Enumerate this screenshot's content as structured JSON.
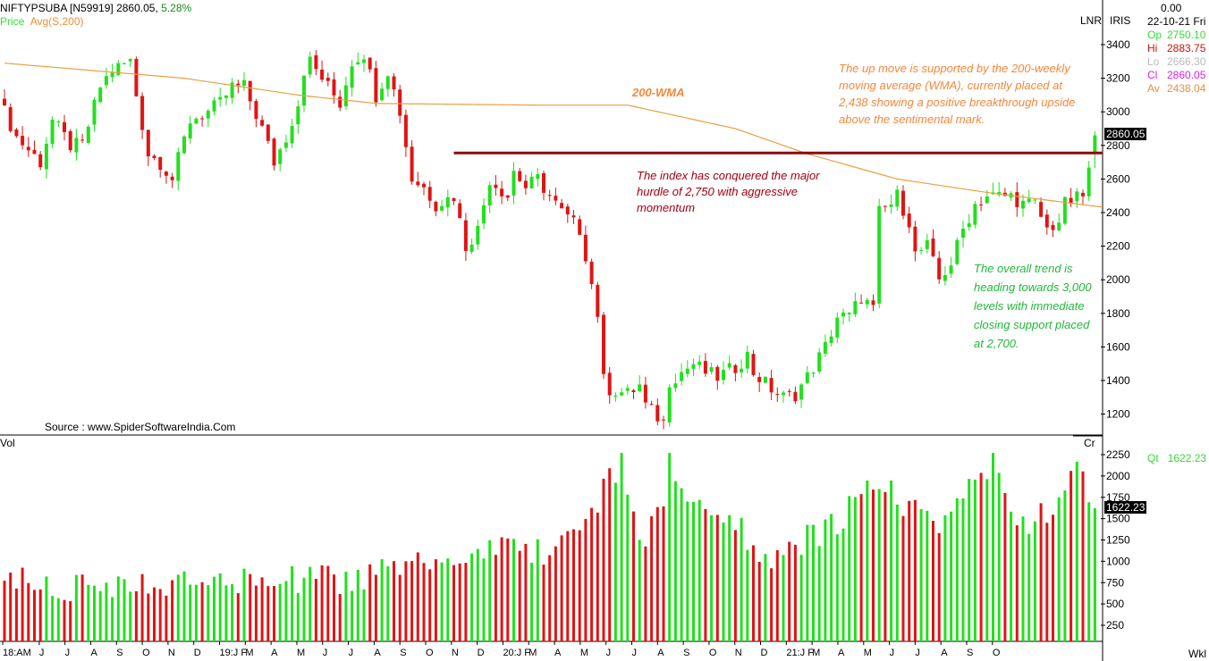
{
  "header": {
    "symbol": "NIFTYPSUBA [N59919]",
    "last": "2860.05,",
    "change_pct": "5.28%",
    "price_label": "Price",
    "avg_label": "Avg(S,200)"
  },
  "right_panel": {
    "lnr": "LNR",
    "iris": "IRIS",
    "top_value": "0.00",
    "date": "22-10-21 Fri",
    "op_label": "Op",
    "op": "2750.10",
    "hi_label": "Hi",
    "hi": "2883.75",
    "lo_label": "Lo",
    "lo": "2666.30",
    "cl_label": "Cl",
    "cl": "2860.05",
    "av_label": "Av",
    "av": "2438.04",
    "price_marker": "2860.05",
    "vol_unit": "Cr",
    "qt_label": "Qt",
    "qt": "1622.23",
    "vol_marker": "1622.23",
    "period": "Wkl"
  },
  "volume_label": "Vol",
  "source": "Source : www.SpiderSoftwareIndia.Com",
  "annotations": {
    "wma_label": "200-WMA",
    "hurdle": "The index has conquered the major hurdle of 2,750 with aggressive momentum",
    "wma_note": "The up move is supported by the 200-weekly moving average (WMA), currently placed at 2,438 showing a positive breakthrough upside above the sentimental mark.",
    "trend_note": "The overall trend is heading towards 3,000 levels with immediate closing support placed at 2,700."
  },
  "colors": {
    "up": "#22e01e",
    "down": "#e01414",
    "wma": "#e8a040",
    "hurdle_line": "#8b0a0a",
    "orange_text": "#f5873a",
    "green_text": "#22b83a",
    "red_text": "#a00010"
  },
  "chart_data": [
    {
      "type": "candlestick",
      "title": "NIFTYPSUBA weekly",
      "ylim": [
        1100,
        3500
      ],
      "yticks": [
        "3400",
        "3200",
        "3000",
        "2800",
        "2600",
        "2400",
        "2200",
        "2000",
        "1800",
        "1600",
        "1400",
        "1200"
      ],
      "xticks": [
        "18:AM",
        "J",
        "J",
        "A",
        "S",
        "O",
        "N",
        "D",
        "19:J F",
        "M",
        "A",
        "M",
        "J",
        "J",
        "A",
        "S",
        "O",
        "N",
        "D",
        "20:J F",
        "M",
        "A",
        "M",
        "J",
        "J",
        "A",
        "S",
        "O",
        "N",
        "D",
        "21:J F",
        "M",
        "A",
        "M",
        "J",
        "J",
        "A",
        "S",
        "O"
      ],
      "weeks": 183,
      "close_keypoints": [
        [
          0,
          3000
        ],
        [
          2,
          2850
        ],
        [
          6,
          2700
        ],
        [
          8,
          2950
        ],
        [
          11,
          2800
        ],
        [
          13,
          2800
        ],
        [
          16,
          3150
        ],
        [
          18,
          3250
        ],
        [
          21,
          3300
        ],
        [
          22,
          3100
        ],
        [
          24,
          2750
        ],
        [
          26,
          2700
        ],
        [
          28,
          2600
        ],
        [
          31,
          2950
        ],
        [
          34,
          3000
        ],
        [
          36,
          3050
        ],
        [
          38,
          3150
        ],
        [
          40,
          3150
        ],
        [
          43,
          2900
        ],
        [
          45,
          2700
        ],
        [
          47,
          2850
        ],
        [
          49,
          3050
        ],
        [
          50,
          3250
        ],
        [
          51,
          3300
        ],
        [
          54,
          3150
        ],
        [
          56,
          3050
        ],
        [
          58,
          3300
        ],
        [
          60,
          3350
        ],
        [
          62,
          3100
        ],
        [
          64,
          3250
        ],
        [
          66,
          3000
        ],
        [
          68,
          2600
        ],
        [
          70,
          2550
        ],
        [
          72,
          2450
        ],
        [
          75,
          2500
        ],
        [
          77,
          2200
        ],
        [
          79,
          2300
        ],
        [
          81,
          2600
        ],
        [
          84,
          2500
        ],
        [
          85,
          2650
        ],
        [
          87,
          2550
        ],
        [
          89,
          2600
        ],
        [
          91,
          2500
        ],
        [
          93,
          2400
        ],
        [
          96,
          2300
        ],
        [
          97,
          2150
        ],
        [
          99,
          1800
        ],
        [
          100,
          1400
        ],
        [
          101,
          1350
        ],
        [
          104,
          1320
        ],
        [
          106,
          1370
        ],
        [
          107,
          1250
        ],
        [
          110,
          1150
        ],
        [
          111,
          1400
        ],
        [
          113,
          1450
        ],
        [
          115,
          1500
        ],
        [
          117,
          1450
        ],
        [
          119,
          1420
        ],
        [
          122,
          1480
        ],
        [
          124,
          1550
        ],
        [
          125,
          1450
        ],
        [
          128,
          1350
        ],
        [
          130,
          1300
        ],
        [
          132,
          1320
        ],
        [
          134,
          1420
        ],
        [
          137,
          1600
        ],
        [
          139,
          1780
        ],
        [
          141,
          1780
        ],
        [
          143,
          1900
        ],
        [
          145,
          1820
        ],
        [
          146,
          2400
        ],
        [
          148,
          2450
        ],
        [
          149,
          2500
        ],
        [
          151,
          2350
        ],
        [
          152,
          2150
        ],
        [
          154,
          2200
        ],
        [
          156,
          2000
        ],
        [
          158,
          2100
        ],
        [
          160,
          2300
        ],
        [
          162,
          2450
        ],
        [
          164,
          2500
        ],
        [
          165,
          2500
        ],
        [
          168,
          2500
        ],
        [
          170,
          2450
        ],
        [
          172,
          2450
        ],
        [
          174,
          2300
        ],
        [
          176,
          2350
        ],
        [
          177,
          2450
        ],
        [
          180,
          2500
        ],
        [
          181,
          2650
        ],
        [
          182,
          2860.05
        ]
      ],
      "last_candle": {
        "open": 2750.1,
        "high": 2883.75,
        "low": 2666.3,
        "close": 2860.05
      },
      "wma_keypoints": [
        [
          0,
          3290
        ],
        [
          30,
          3200
        ],
        [
          49,
          3100
        ],
        [
          62,
          3050
        ],
        [
          89,
          3040
        ],
        [
          104,
          3040
        ],
        [
          122,
          2900
        ],
        [
          134,
          2750
        ],
        [
          149,
          2600
        ],
        [
          164,
          2520
        ],
        [
          182,
          2438.04
        ]
      ],
      "hurdle_level": 2750,
      "hurdle_from_week": 75
    },
    {
      "type": "bar",
      "title": "Vol",
      "ylim": [
        0,
        2400
      ],
      "yticks": [
        "2250",
        "2000",
        "1750",
        "1500",
        "1250",
        "1000",
        "750",
        "500",
        "250"
      ],
      "volume_keypoints": [
        [
          0,
          750
        ],
        [
          20,
          700
        ],
        [
          40,
          780
        ],
        [
          60,
          800
        ],
        [
          75,
          1000
        ],
        [
          85,
          1150
        ],
        [
          90,
          1100
        ],
        [
          97,
          1500
        ],
        [
          100,
          1800
        ],
        [
          103,
          2250
        ],
        [
          106,
          1300
        ],
        [
          110,
          1500
        ],
        [
          111,
          2250
        ],
        [
          115,
          1600
        ],
        [
          120,
          1600
        ],
        [
          125,
          1200
        ],
        [
          130,
          1000
        ],
        [
          135,
          1300
        ],
        [
          140,
          1500
        ],
        [
          146,
          2000
        ],
        [
          150,
          1700
        ],
        [
          155,
          1400
        ],
        [
          160,
          1700
        ],
        [
          165,
          2250
        ],
        [
          170,
          1400
        ],
        [
          175,
          1700
        ],
        [
          180,
          2100
        ],
        [
          182,
          1622.23
        ]
      ]
    }
  ]
}
